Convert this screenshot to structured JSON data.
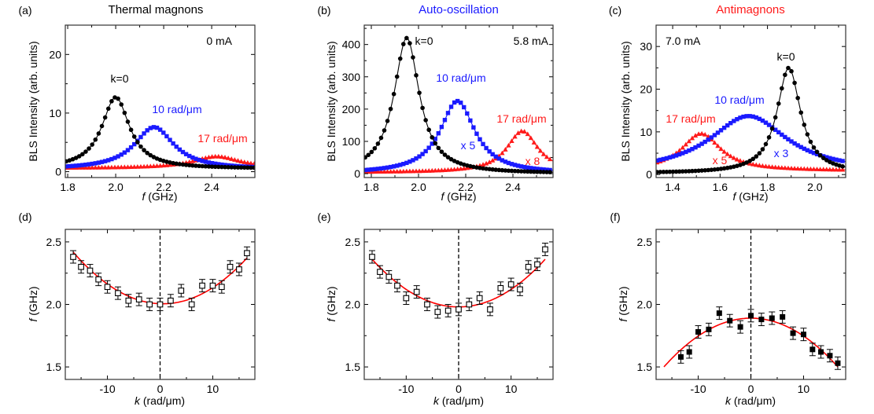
{
  "colors": {
    "black": "#000000",
    "blue": "#1a1aff",
    "red": "#ff1a1a"
  },
  "chart_data": [
    {
      "panel": "(a)",
      "title": "Thermal magnons",
      "title_color": "#000000",
      "type": "line",
      "xlabel": {
        "symbol": "f",
        "unit": "(GHz)"
      },
      "ylabel": "BLS Intensity (arb. units)",
      "xlim": [
        1.79,
        2.58
      ],
      "ylim": [
        -1,
        25
      ],
      "xticks": [
        "1.8",
        "2.0",
        "2.2",
        "2.4"
      ],
      "yticks": [
        "0",
        "10",
        "20"
      ],
      "annotations": [
        {
          "text": "0 mA",
          "color": "#000000"
        },
        {
          "text": "k=0",
          "color": "#000000"
        },
        {
          "text": "10 rad/μm",
          "color": "#1a1aff"
        },
        {
          "text": "17 rad/μm",
          "color": "#ff1a1a"
        }
      ],
      "series": [
        {
          "name": "k=0",
          "color": "#000000",
          "marker": "circle",
          "lorentz_fit": {
            "center": 2.0,
            "amplitude": 12.2,
            "hwhm": 0.07,
            "baseline": 0.5
          }
        },
        {
          "name": "10 rad/μm",
          "color": "#1a1aff",
          "marker": "square",
          "lorentz_fit": {
            "center": 2.16,
            "amplitude": 7.2,
            "hwhm": 0.1,
            "baseline": 0.4
          }
        },
        {
          "name": "17 rad/μm",
          "color": "#ff1a1a",
          "marker": "triangle",
          "lorentz_fit": {
            "center": 2.42,
            "amplitude": 2.0,
            "hwhm": 0.12,
            "baseline": 0.6
          }
        }
      ]
    },
    {
      "panel": "(b)",
      "title": "Auto-oscillation",
      "title_color": "#1a1aff",
      "type": "line",
      "xlabel": {
        "symbol": "f",
        "unit": "(GHz)"
      },
      "ylabel": "BLS Intensity (arb. units)",
      "xlim": [
        1.77,
        2.57
      ],
      "ylim": [
        -12,
        460
      ],
      "xticks": [
        "1.8",
        "2.0",
        "2.2",
        "2.4"
      ],
      "yticks": [
        "0",
        "100",
        "200",
        "300",
        "400"
      ],
      "annotations": [
        {
          "text": "k=0",
          "color": "#000000"
        },
        {
          "text": "5.8 mA",
          "color": "#000000"
        },
        {
          "text": "10 rad/μm",
          "color": "#1a1aff"
        },
        {
          "text": "17 rad/μm",
          "color": "#ff1a1a"
        },
        {
          "text": "x 5",
          "color": "#1a1aff"
        },
        {
          "text": "x 8",
          "color": "#ff1a1a"
        }
      ],
      "series": [
        {
          "name": "k=0",
          "color": "#000000",
          "marker": "circle",
          "lorentz_fit": {
            "center": 1.95,
            "amplitude": 420,
            "hwhm": 0.065,
            "baseline": 0
          }
        },
        {
          "name": "10 rad/μm",
          "scale": "x5",
          "color": "#1a1aff",
          "marker": "square",
          "lorentz_fit": {
            "center": 2.165,
            "amplitude": 225,
            "hwhm": 0.09,
            "baseline": 0
          }
        },
        {
          "name": "17 rad/μm",
          "scale": "x8",
          "color": "#ff1a1a",
          "marker": "triangle",
          "lorentz_fit": {
            "center": 2.44,
            "amplitude": 128,
            "hwhm": 0.08,
            "baseline": 4
          }
        }
      ]
    },
    {
      "panel": "(c)",
      "title": "Antimagnons",
      "title_color": "#ff1a1a",
      "type": "line",
      "xlabel": {
        "symbol": "f",
        "unit": "(GHz)"
      },
      "ylabel": "BLS Intensity (arb. units)",
      "xlim": [
        1.33,
        2.13
      ],
      "ylim": [
        -0.7,
        35
      ],
      "xticks": [
        "1.4",
        "1.6",
        "1.8",
        "2.0"
      ],
      "yticks": [
        "0",
        "10",
        "20",
        "30"
      ],
      "annotations": [
        {
          "text": "7.0 mA",
          "color": "#000000"
        },
        {
          "text": "k=0",
          "color": "#000000"
        },
        {
          "text": "10 rad/μm",
          "color": "#1a1aff"
        },
        {
          "text": "17 rad/μm",
          "color": "#ff1a1a"
        },
        {
          "text": "x 5",
          "color": "#ff1a1a"
        },
        {
          "text": "x 3",
          "color": "#1a1aff"
        }
      ],
      "series": [
        {
          "name": "k=0",
          "color": "#000000",
          "marker": "circle",
          "lorentz_fit": {
            "center": 1.89,
            "amplitude": 24.7,
            "hwhm": 0.06,
            "baseline": 0.3
          }
        },
        {
          "name": "10 rad/μm",
          "scale": "x3",
          "color": "#1a1aff",
          "marker": "square",
          "lorentz_fit": {
            "center": 1.72,
            "amplitude": 13.2,
            "hwhm": 0.2,
            "baseline": 0.5
          }
        },
        {
          "name": "17 rad/μm",
          "scale": "x5",
          "color": "#ff1a1a",
          "marker": "triangle",
          "lorentz_fit": {
            "center": 1.52,
            "amplitude": 8.7,
            "hwhm": 0.1,
            "baseline": 0.9
          }
        }
      ]
    },
    {
      "panel": "(d)",
      "type": "scatter",
      "xlabel": {
        "symbol": "k",
        "unit": "(rad/μm)"
      },
      "ylabel": {
        "symbol": "f",
        "unit": "(GHz)"
      },
      "xlim": [
        -18,
        18
      ],
      "ylim": [
        1.4,
        2.6
      ],
      "xticks": [
        "-10",
        "0",
        "10"
      ],
      "yticks": [
        "1.5",
        "2.0",
        "2.5"
      ],
      "marker": "open-square",
      "error": 0.05,
      "k": [
        -16.5,
        -15,
        -13.3,
        -11.7,
        -10,
        -8,
        -6,
        -4,
        -2,
        0,
        2,
        4,
        6,
        8,
        10,
        11.7,
        13.3,
        15,
        16.5
      ],
      "f": [
        2.38,
        2.3,
        2.27,
        2.2,
        2.14,
        2.09,
        2.03,
        2.04,
        2.0,
        2.0,
        2.03,
        2.11,
        2.0,
        2.15,
        2.15,
        2.14,
        2.3,
        2.28,
        2.41
      ],
      "fit": {
        "f0": 2.005,
        "k0": 0.5,
        "curvature": 0.00143,
        "k_range": [
          -16.5,
          16.5
        ],
        "color": "#ff0000"
      }
    },
    {
      "panel": "(e)",
      "type": "scatter",
      "xlabel": {
        "symbol": "k",
        "unit": "(rad/μm)"
      },
      "ylabel": {
        "symbol": "f",
        "unit": "(GHz)"
      },
      "xlim": [
        -18,
        18
      ],
      "ylim": [
        1.4,
        2.6
      ],
      "xticks": [
        "-10",
        "0",
        "10"
      ],
      "yticks": [
        "1.5",
        "2.0",
        "2.5"
      ],
      "marker": "open-square",
      "error": 0.05,
      "k": [
        -16.5,
        -15,
        -13.3,
        -11.7,
        -10,
        -8,
        -6,
        -4,
        -2,
        0,
        2,
        4,
        6,
        8,
        10,
        11.7,
        13.3,
        15,
        16.5
      ],
      "f": [
        2.38,
        2.26,
        2.22,
        2.15,
        2.05,
        2.1,
        2.0,
        1.94,
        1.95,
        1.96,
        2.0,
        2.05,
        1.96,
        2.13,
        2.16,
        2.12,
        2.3,
        2.32,
        2.44
      ],
      "fit": {
        "f0": 1.98,
        "k0": 0,
        "curvature": 0.0014,
        "k_range": [
          -16.5,
          16.5
        ],
        "color": "#ff0000"
      }
    },
    {
      "panel": "(f)",
      "type": "scatter",
      "xlabel": {
        "symbol": "k",
        "unit": "(rad/μm)"
      },
      "ylabel": {
        "symbol": "f",
        "unit": "(GHz)"
      },
      "xlim": [
        -18,
        18
      ],
      "ylim": [
        1.4,
        2.6
      ],
      "xticks": [
        "-10",
        "0",
        "10"
      ],
      "yticks": [
        "1.5",
        "2.0",
        "2.5"
      ],
      "marker": "filled-square",
      "error": 0.05,
      "k": [
        -13.3,
        -11.7,
        -10,
        -8,
        -6,
        -4,
        -2,
        0,
        2,
        4,
        6,
        8,
        10,
        11.7,
        13.3,
        15,
        16.5
      ],
      "f": [
        1.58,
        1.62,
        1.78,
        1.8,
        1.93,
        1.87,
        1.82,
        1.91,
        1.88,
        1.89,
        1.9,
        1.77,
        1.76,
        1.64,
        1.62,
        1.59,
        1.53
      ],
      "fit": {
        "f0": 1.89,
        "k0": 0,
        "curvature": -0.00143,
        "k_range": [
          -16.5,
          16.5
        ],
        "color": "#ff0000"
      }
    }
  ]
}
